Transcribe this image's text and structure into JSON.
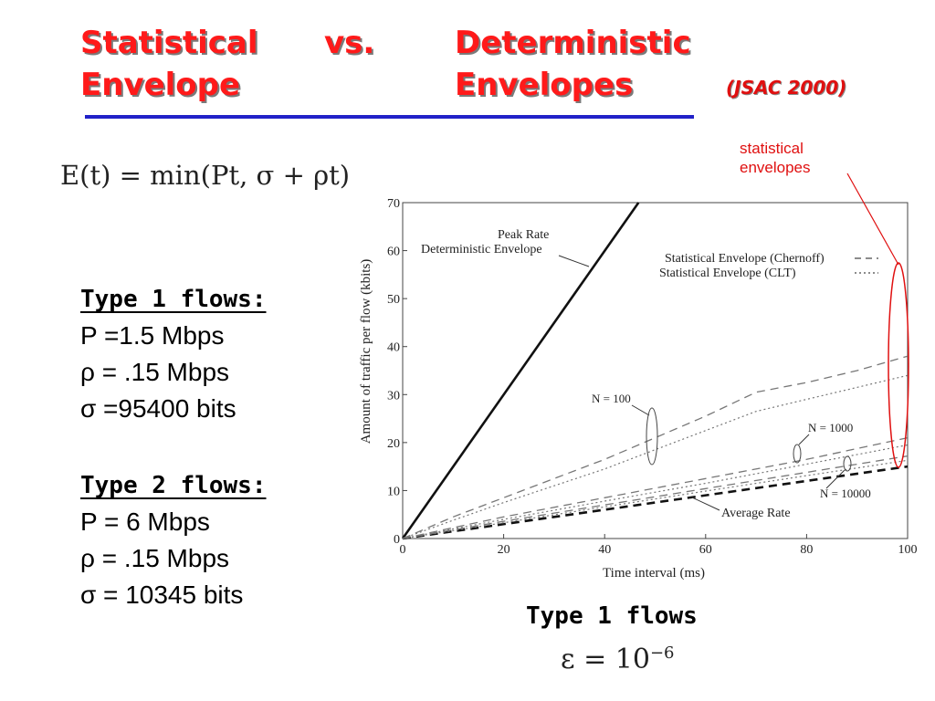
{
  "slide": {
    "title_col1_line1": "Statistical",
    "title_col1_line2": "Envelope",
    "title_col2": "vs.",
    "title_col3_line1": "Deterministic",
    "title_col3_line2": "Envelopes",
    "subtitle": "(JSAC 2000)",
    "formula": "E(t) = min(Pt, σ + ρt)",
    "annotation": "statistical envelopes",
    "caption": "Type 1 flows",
    "epsilon": "ε = 10",
    "epsilon_exp": "−6",
    "colors": {
      "title": "#ff1a1a",
      "rule": "#2121c8",
      "annotation": "#e01010"
    }
  },
  "params": {
    "type1": {
      "heading": "Type 1 flows:",
      "P": "P =1.5 Mbps",
      "rho": "ρ = .15 Mbps",
      "sigma": "σ =95400 bits"
    },
    "type2": {
      "heading": "Type 2 flows:",
      "P": "P = 6 Mbps",
      "rho": "ρ = .15 Mbps",
      "sigma": "σ = 10345 bits"
    }
  },
  "chart_data": {
    "type": "line",
    "xlabel": "Time interval (ms)",
    "ylabel": "Amount of traffic per flow (kbits)",
    "xlim": [
      0,
      100
    ],
    "ylim": [
      0,
      70
    ],
    "xticks": [
      0,
      20,
      40,
      60,
      80,
      100
    ],
    "yticks": [
      0,
      10,
      20,
      30,
      40,
      50,
      60,
      70
    ],
    "legend": {
      "position": "top-right",
      "entries": [
        "Statistical Envelope (Chernoff)",
        "Statistical Envelope  (CLT)"
      ]
    },
    "annotations": {
      "peak_rate": "Peak Rate",
      "deterministic_envelope": "Deterministic Envelope",
      "n100": "N = 100",
      "n1000": "N = 1000",
      "n10000": "N = 10000",
      "average_rate": "Average Rate"
    },
    "series": [
      {
        "id": "peak",
        "x": [
          0,
          46.7
        ],
        "y": [
          0,
          70
        ]
      },
      {
        "id": "avg",
        "x": [
          0,
          100
        ],
        "y": [
          0,
          15
        ]
      },
      {
        "id": "ch100",
        "x": [
          0,
          10,
          20,
          30,
          40,
          50,
          60,
          70,
          80,
          90,
          100
        ],
        "y": [
          0,
          4.5,
          8.5,
          12.5,
          16.5,
          21,
          25.5,
          30.5,
          32.5,
          35,
          38
        ]
      },
      {
        "id": "clt100",
        "x": [
          0,
          10,
          20,
          30,
          40,
          50,
          60,
          70,
          80,
          90,
          100
        ],
        "y": [
          0,
          3.8,
          7.5,
          11,
          14.5,
          18.5,
          22.5,
          26.5,
          29,
          31.5,
          34
        ]
      },
      {
        "id": "ch1000",
        "x": [
          0,
          20,
          40,
          60,
          80,
          100
        ],
        "y": [
          0,
          4.5,
          8.5,
          12.5,
          16.5,
          21
        ]
      },
      {
        "id": "clt1000",
        "x": [
          0,
          20,
          40,
          60,
          80,
          100
        ],
        "y": [
          0,
          4,
          7.8,
          11.5,
          15.5,
          19.5
        ]
      },
      {
        "id": "ch10000",
        "x": [
          0,
          20,
          40,
          60,
          80,
          100
        ],
        "y": [
          0,
          3.6,
          7,
          10.4,
          13.8,
          17.2
        ]
      },
      {
        "id": "clt10000",
        "x": [
          0,
          20,
          40,
          60,
          80,
          100
        ],
        "y": [
          0,
          3.3,
          6.6,
          9.9,
          13.1,
          16.3
        ]
      }
    ]
  }
}
